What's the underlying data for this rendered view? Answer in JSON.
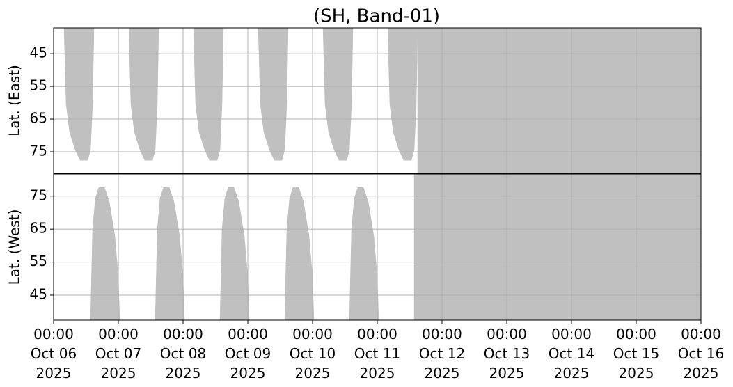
{
  "chart_data": [
    {
      "type": "area",
      "title": "(SH, Band-01)",
      "ylabel": "Lat. (East)",
      "ylim": [
        81.6,
        37.1
      ],
      "yticks": [
        45,
        55,
        65,
        75
      ],
      "grid": true,
      "xlim": [
        "2025-10-06T00:00",
        "2025-10-16T00:00"
      ],
      "series": [
        {
          "color": "#c0c0c0",
          "x": [
            "2025-10-06T03:52",
            "2025-10-06T04:39",
            "2025-10-06T05:56",
            "2025-10-06T08:00",
            "2025-10-06T09:49",
            "2025-10-06T12:39",
            "2025-10-06T13:40",
            "2025-10-06T14:27",
            "2025-10-06T14:58"
          ],
          "values": [
            37.1,
            60.5,
            69.0,
            74.4,
            77.6,
            77.6,
            74.4,
            60.5,
            37.1
          ]
        },
        {
          "color": "#c0c0c0",
          "x": [
            "2025-10-07T03:52",
            "2025-10-07T04:39",
            "2025-10-07T05:56",
            "2025-10-07T08:00",
            "2025-10-07T09:49",
            "2025-10-07T12:39",
            "2025-10-07T13:40",
            "2025-10-07T14:27",
            "2025-10-07T14:58"
          ],
          "values": [
            37.1,
            60.5,
            69.0,
            74.4,
            77.6,
            77.6,
            74.4,
            60.5,
            37.1
          ]
        },
        {
          "color": "#c0c0c0",
          "x": [
            "2025-10-08T03:52",
            "2025-10-08T04:39",
            "2025-10-08T05:56",
            "2025-10-08T08:00",
            "2025-10-08T09:49",
            "2025-10-08T12:39",
            "2025-10-08T13:40",
            "2025-10-08T14:27",
            "2025-10-08T14:58"
          ],
          "values": [
            37.1,
            60.5,
            69.0,
            74.4,
            77.6,
            77.6,
            74.4,
            60.5,
            37.1
          ]
        },
        {
          "color": "#c0c0c0",
          "x": [
            "2025-10-09T03:52",
            "2025-10-09T04:39",
            "2025-10-09T05:56",
            "2025-10-09T08:00",
            "2025-10-09T09:49",
            "2025-10-09T12:39",
            "2025-10-09T13:40",
            "2025-10-09T14:27",
            "2025-10-09T14:58"
          ],
          "values": [
            37.1,
            60.5,
            69.0,
            74.4,
            77.6,
            77.6,
            74.4,
            60.5,
            37.1
          ]
        },
        {
          "color": "#c0c0c0",
          "x": [
            "2025-10-10T03:52",
            "2025-10-10T04:39",
            "2025-10-10T05:56",
            "2025-10-10T08:00",
            "2025-10-10T09:49",
            "2025-10-10T12:39",
            "2025-10-10T13:40",
            "2025-10-10T14:27",
            "2025-10-10T14:58"
          ],
          "values": [
            37.1,
            60.5,
            69.0,
            74.4,
            77.6,
            77.6,
            74.4,
            60.5,
            37.1
          ]
        },
        {
          "color": "#c0c0c0",
          "x": [
            "2025-10-11T03:52",
            "2025-10-11T04:39",
            "2025-10-11T05:56",
            "2025-10-11T08:00",
            "2025-10-11T09:49",
            "2025-10-11T12:39",
            "2025-10-11T13:40",
            "2025-10-11T14:27",
            "2025-10-11T14:58"
          ],
          "values": [
            37.1,
            60.5,
            69.0,
            74.4,
            77.6,
            77.6,
            74.4,
            60.5,
            37.1
          ]
        },
        {
          "color": "#c0c0c0",
          "x": [
            "2025-10-11T14:58",
            "2025-10-16T00:00",
            "2025-10-16T00:00",
            "2025-10-11T14:58"
          ],
          "values": [
            37.1,
            37.1,
            81.6,
            81.6
          ]
        }
      ]
    },
    {
      "type": "area",
      "ylabel": "Lat. (West)",
      "ylim": [
        37.4,
        81.7
      ],
      "yticks": [
        45,
        55,
        65,
        75
      ],
      "grid": true,
      "xlim": [
        "2025-10-06T00:00",
        "2025-10-16T00:00"
      ],
      "xticks": [
        {
          "value": "2025-10-06T00:00",
          "label": "00:00\nOct 06\n2025"
        },
        {
          "value": "2025-10-07T00:00",
          "label": "00:00\nOct 07\n2025"
        },
        {
          "value": "2025-10-08T00:00",
          "label": "00:00\nOct 08\n2025"
        },
        {
          "value": "2025-10-09T00:00",
          "label": "00:00\nOct 09\n2025"
        },
        {
          "value": "2025-10-10T00:00",
          "label": "00:00\nOct 10\n2025"
        },
        {
          "value": "2025-10-11T00:00",
          "label": "00:00\nOct 11\n2025"
        },
        {
          "value": "2025-10-12T00:00",
          "label": "00:00\nOct 12\n2025"
        },
        {
          "value": "2025-10-13T00:00",
          "label": "00:00\nOct 13\n2025"
        },
        {
          "value": "2025-10-14T00:00",
          "label": "00:00\nOct 14\n2025"
        },
        {
          "value": "2025-10-15T00:00",
          "label": "00:00\nOct 15\n2025"
        },
        {
          "value": "2025-10-16T00:00",
          "label": "00:00\nOct 16\n2025"
        }
      ],
      "series": [
        {
          "color": "#c0c0c0",
          "x": [
            "2025-10-06T13:40",
            "2025-10-06T14:27",
            "2025-10-06T15:29",
            "2025-10-06T16:47",
            "2025-10-06T18:50",
            "2025-10-06T20:39",
            "2025-10-06T22:42",
            "2025-10-07T00:00",
            "2025-10-07T00:31"
          ],
          "values": [
            37.4,
            65,
            74.4,
            77.7,
            77.7,
            73.3,
            62.9,
            50.3,
            37.4
          ]
        },
        {
          "color": "#c0c0c0",
          "x": [
            "2025-10-07T13:40",
            "2025-10-07T14:27",
            "2025-10-07T15:29",
            "2025-10-07T16:47",
            "2025-10-07T18:50",
            "2025-10-07T20:39",
            "2025-10-07T22:42",
            "2025-10-08T00:00",
            "2025-10-08T00:31"
          ],
          "values": [
            37.4,
            65,
            74.4,
            77.7,
            77.7,
            73.3,
            62.9,
            50.3,
            37.4
          ]
        },
        {
          "color": "#c0c0c0",
          "x": [
            "2025-10-08T13:40",
            "2025-10-08T14:27",
            "2025-10-08T15:29",
            "2025-10-08T16:47",
            "2025-10-08T18:50",
            "2025-10-08T20:39",
            "2025-10-08T22:42",
            "2025-10-09T00:00",
            "2025-10-09T00:31"
          ],
          "values": [
            37.4,
            65,
            74.4,
            77.7,
            77.7,
            73.3,
            62.9,
            50.3,
            37.4
          ]
        },
        {
          "color": "#c0c0c0",
          "x": [
            "2025-10-09T13:40",
            "2025-10-09T14:27",
            "2025-10-09T15:29",
            "2025-10-09T16:47",
            "2025-10-09T18:50",
            "2025-10-09T20:39",
            "2025-10-09T22:42",
            "2025-10-10T00:00",
            "2025-10-10T00:31"
          ],
          "values": [
            37.4,
            65,
            74.4,
            77.7,
            77.7,
            73.3,
            62.9,
            50.3,
            37.4
          ]
        },
        {
          "color": "#c0c0c0",
          "x": [
            "2025-10-10T13:40",
            "2025-10-10T14:27",
            "2025-10-10T15:29",
            "2025-10-10T16:47",
            "2025-10-10T18:50",
            "2025-10-10T20:39",
            "2025-10-10T22:42",
            "2025-10-11T00:00",
            "2025-10-11T00:31"
          ],
          "values": [
            37.4,
            65,
            74.4,
            77.7,
            77.7,
            73.3,
            62.9,
            50.3,
            37.4
          ]
        },
        {
          "color": "#c0c0c0",
          "x": [
            "2025-10-11T13:40",
            "2025-10-16T00:00",
            "2025-10-16T00:00",
            "2025-10-11T13:40"
          ],
          "values": [
            37.4,
            37.4,
            81.7,
            81.7
          ]
        }
      ]
    }
  ]
}
